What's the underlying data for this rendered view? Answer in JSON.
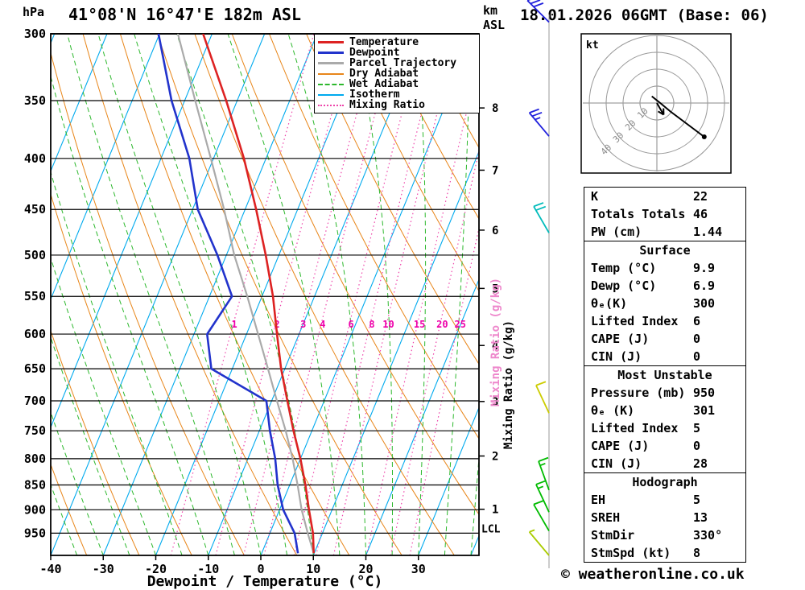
{
  "header": {
    "pressure_unit": "hPa",
    "title": "41°08'N 16°47'E 182m ASL",
    "altitude_unit_line1": "km",
    "altitude_unit_line2": "ASL",
    "date": "18.01.2026 06GMT (Base: 06)"
  },
  "axes": {
    "pressure_ticks": [
      300,
      350,
      400,
      450,
      500,
      550,
      600,
      650,
      700,
      750,
      800,
      850,
      900,
      950
    ],
    "temp_ticks": [
      -40,
      -30,
      -20,
      -10,
      0,
      10,
      20,
      30
    ],
    "x_label": "Dewpoint / Temperature (°C)",
    "mixing_axis_label": "Mixing Ratio (g/kg)",
    "lcl_label": "LCL"
  },
  "legend": {
    "items": [
      {
        "label": "Temperature",
        "color": "#dd2222",
        "style": "solid",
        "weight": 3
      },
      {
        "label": "Dewpoint",
        "color": "#2233cc",
        "style": "solid",
        "weight": 3
      },
      {
        "label": "Parcel Trajectory",
        "color": "#aaaaaa",
        "style": "solid",
        "weight": 3
      },
      {
        "label": "Dry Adiabat",
        "color": "#e8861a",
        "style": "solid",
        "weight": 2
      },
      {
        "label": "Wet Adiabat",
        "color": "#2db82d",
        "style": "dashed",
        "weight": 2
      },
      {
        "label": "Isotherm",
        "color": "#00aaee",
        "style": "solid",
        "weight": 2
      },
      {
        "label": "Mixing Ratio",
        "color": "#ee44aa",
        "style": "dotted",
        "weight": 2
      }
    ]
  },
  "chart_data": {
    "type": "skewt-logp",
    "title": "41°08'N 16°47'E 182m ASL",
    "pressure_range_hPa": [
      300,
      1000
    ],
    "temp_axis_range_C": [
      -40,
      40
    ],
    "pressure_levels_hPa": [
      995,
      950,
      900,
      850,
      800,
      750,
      700,
      650,
      600,
      550,
      500,
      450,
      400,
      350,
      300
    ],
    "series": [
      {
        "name": "Temperature",
        "color": "#dd2222",
        "values_C": [
          9.9,
          8.2,
          5.6,
          3.0,
          0.0,
          -3.5,
          -7.0,
          -10.7,
          -14.2,
          -17.9,
          -22.5,
          -27.9,
          -34.2,
          -42.1,
          -51.7
        ]
      },
      {
        "name": "Dewpoint",
        "color": "#2233cc",
        "values_C": [
          6.9,
          4.7,
          0.7,
          -2.3,
          -4.8,
          -8.0,
          -11.0,
          -24.0,
          -27.5,
          -25.7,
          -31.7,
          -39.0,
          -44.6,
          -52.5,
          -60.2
        ]
      },
      {
        "name": "Parcel Trajectory",
        "color": "#aaaaaa",
        "values_C": [
          9.9,
          7.2,
          4.2,
          1.5,
          -1.5,
          -5.0,
          -9.0,
          -13.2,
          -17.8,
          -22.8,
          -28.5,
          -34.0,
          -40.5,
          -48.0,
          -56.5
        ]
      }
    ],
    "mixing_ratio_lines_gkg": [
      1,
      2,
      3,
      4,
      6,
      8,
      10,
      15,
      20,
      25
    ],
    "isotherm_step_C": 10,
    "dry_adiabat_step_K": 10,
    "wet_adiabat_step_C": 5,
    "colors": {
      "isotherm": "#00aaee",
      "dry_adiabat": "#e8861a",
      "wet_adiabat": "#2db82d",
      "mixing_ratio": "#ee44aa",
      "mixing_ratio_label": "#ee00aa",
      "grid": "#000000"
    },
    "km_asl_ticks": [
      {
        "km": 1,
        "hPa": 899
      },
      {
        "km": 2,
        "hPa": 795
      },
      {
        "km": 3,
        "hPa": 701
      },
      {
        "km": 4,
        "hPa": 616
      },
      {
        "km": 5,
        "hPa": 540
      },
      {
        "km": 6,
        "hPa": 472
      },
      {
        "km": 7,
        "hPa": 411
      },
      {
        "km": 8,
        "hPa": 356
      }
    ],
    "lcl_hPa": 940,
    "wind_barbs": [
      {
        "hPa": 292,
        "speed_kt": 30,
        "dir_deg": 315,
        "color": "#2222dd"
      },
      {
        "hPa": 380,
        "speed_kt": 25,
        "dir_deg": 320,
        "color": "#2222dd"
      },
      {
        "hPa": 475,
        "speed_kt": 20,
        "dir_deg": 330,
        "color": "#00bbbb"
      },
      {
        "hPa": 720,
        "speed_kt": 10,
        "dir_deg": 335,
        "color": "#cccc00"
      },
      {
        "hPa": 860,
        "speed_kt": 15,
        "dir_deg": 340,
        "color": "#00bb00"
      },
      {
        "hPa": 905,
        "speed_kt": 15,
        "dir_deg": 335,
        "color": "#00bb00"
      },
      {
        "hPa": 945,
        "speed_kt": 10,
        "dir_deg": 330,
        "color": "#00bb00"
      },
      {
        "hPa": 1000,
        "speed_kt": 5,
        "dir_deg": 320,
        "color": "#aacc00"
      }
    ],
    "hodograph": {
      "rings_kt": [
        10,
        20,
        30,
        40
      ],
      "trace_uv_kt": [
        [
          -3,
          4
        ],
        [
          2,
          0
        ],
        [
          8,
          -5
        ],
        [
          28,
          -20
        ]
      ],
      "storm_motion": {
        "dir_deg": 330,
        "speed_kt": 8
      }
    }
  },
  "hodograph_box": {
    "unit_label": "kt",
    "ring_labels": [
      "10",
      "20",
      "30",
      "40"
    ]
  },
  "panel": {
    "sections": [
      {
        "header": null,
        "rows": [
          [
            "K",
            "22"
          ],
          [
            "Totals Totals",
            "46"
          ],
          [
            "PW (cm)",
            "1.44"
          ]
        ]
      },
      {
        "header": "Surface",
        "rows": [
          [
            "Temp (°C)",
            "9.9"
          ],
          [
            "Dewp (°C)",
            "6.9"
          ],
          [
            "θₑ(K)",
            "300"
          ],
          [
            "Lifted Index",
            "6"
          ],
          [
            "CAPE (J)",
            "0"
          ],
          [
            "CIN (J)",
            "0"
          ]
        ]
      },
      {
        "header": "Most Unstable",
        "rows": [
          [
            "Pressure (mb)",
            "950"
          ],
          [
            "θₑ (K)",
            "301"
          ],
          [
            "Lifted Index",
            "5"
          ],
          [
            "CAPE (J)",
            "0"
          ],
          [
            "CIN (J)",
            "28"
          ]
        ]
      },
      {
        "header": "Hodograph",
        "rows": [
          [
            "EH",
            "5"
          ],
          [
            "SREH",
            "13"
          ],
          [
            "StmDir",
            "330°"
          ],
          [
            "StmSpd (kt)",
            "8"
          ]
        ]
      }
    ]
  },
  "footer": {
    "copyright": "© weatheronline.co.uk"
  }
}
